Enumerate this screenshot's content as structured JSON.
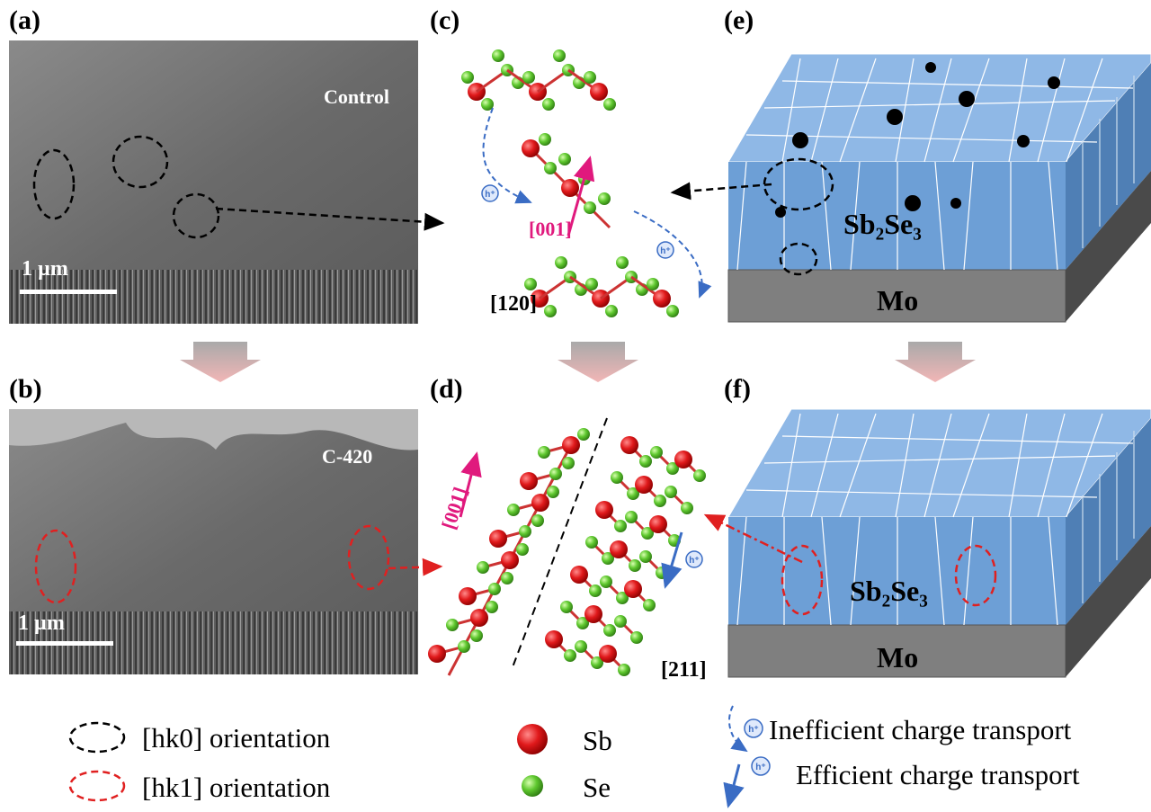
{
  "panels": {
    "a": {
      "label": "(a)",
      "sample": "Control",
      "scale_bar": "1 µm"
    },
    "b": {
      "label": "(b)",
      "sample": "C-420",
      "scale_bar": "1 µm"
    },
    "c": {
      "label": "(c)",
      "direction": "[001]",
      "plane": "[120]",
      "carrier": "h⁺"
    },
    "d": {
      "label": "(d)",
      "direction": "[001]",
      "plane": "[211]",
      "carrier": "h⁺"
    },
    "e": {
      "label": "(e)",
      "absorber": "Sb₂Se₃",
      "substrate": "Mo"
    },
    "f": {
      "label": "(f)",
      "absorber": "Sb₂Se₃",
      "substrate": "Mo"
    }
  },
  "legend": {
    "hk0": "[hk0] orientation",
    "hk1": "[hk1] orientation",
    "sb": "Sb",
    "se": "Se",
    "carrier": "h⁺",
    "inefficient": "Inefficient charge transport",
    "efficient": "Efficient charge transport"
  }
}
